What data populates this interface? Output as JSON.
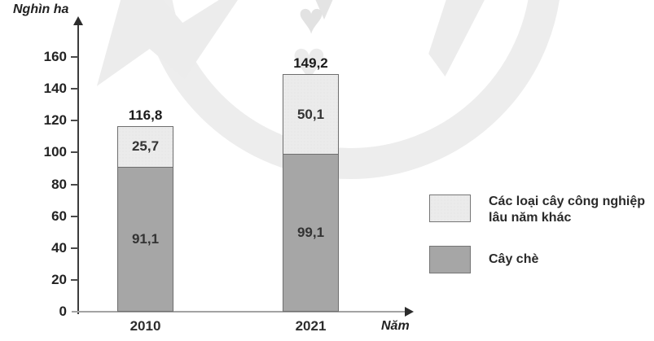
{
  "chart_data": {
    "type": "bar",
    "stacked": true,
    "categories": [
      "2010",
      "2021"
    ],
    "series": [
      {
        "name": "Cây chè",
        "values": [
          91.1,
          99.1
        ],
        "labels": [
          "91,1",
          "99,1"
        ],
        "color": "#a6a6a6"
      },
      {
        "name": "Các loại cây công nghiệp lâu năm khác",
        "values": [
          25.7,
          50.1
        ],
        "labels": [
          "25,7",
          "50,1"
        ],
        "color": "#ebebeb"
      }
    ],
    "totals": [
      116.8,
      149.2
    ],
    "total_labels": [
      "116,8",
      "149,2"
    ],
    "title": "",
    "xlabel": "Năm",
    "ylabel": "Nghìn ha",
    "ylim": [
      0,
      160
    ],
    "yticks": [
      0,
      20,
      40,
      60,
      80,
      100,
      120,
      140,
      160
    ],
    "grid": false,
    "legend_position": "right"
  },
  "axis": {
    "y_label": "Nghìn ha",
    "x_label": "Năm",
    "y_tick_labels": [
      "160",
      "140",
      "120",
      "100",
      "80",
      "60",
      "40",
      "20",
      "0"
    ]
  },
  "bars": [
    {
      "year": "2010",
      "total": "116,8",
      "other": "25,7",
      "tea": "91,1"
    },
    {
      "year": "2021",
      "total": "149,2",
      "other": "50,1",
      "tea": "99,1"
    }
  ],
  "legend": {
    "other_label": "Các loại cây công nghiệp lâu năm khác",
    "tea_label": "Cây chè"
  },
  "icons": {
    "watermark": "publisher-logo-watermark",
    "heart": "♥"
  },
  "colors": {
    "tea_fill": "#a6a6a6",
    "other_fill": "#ebebeb",
    "segment_border": "#6e6e6e",
    "y_axis": "#3c3c3c",
    "x_axis": "#a3a3a3",
    "text": "#222222",
    "watermark": "#ededed"
  }
}
